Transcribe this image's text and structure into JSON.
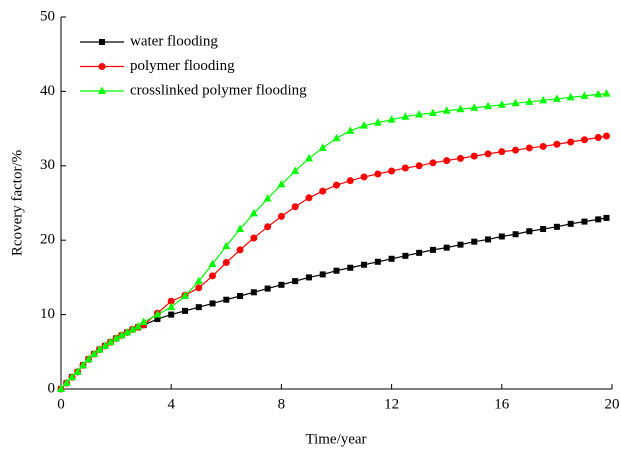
{
  "chart_data": {
    "type": "line",
    "xlabel": "Time/year",
    "ylabel": "Rcovery factor/%",
    "x": [
      0,
      0.2,
      0.4,
      0.6,
      0.8,
      1,
      1.2,
      1.4,
      1.6,
      1.8,
      2,
      2.2,
      2.4,
      2.6,
      2.8,
      3,
      3.5,
      4,
      4.5,
      5,
      5.5,
      6,
      6.5,
      7,
      7.5,
      8,
      8.5,
      9,
      9.5,
      10,
      10.5,
      11,
      11.5,
      12,
      12.5,
      13,
      13.5,
      14,
      14.5,
      15,
      15.5,
      16,
      16.5,
      17,
      17.5,
      18,
      18.5,
      19,
      19.5,
      19.8
    ],
    "series": [
      {
        "name": "water flooding",
        "color": "#000000",
        "marker": "square",
        "values": [
          0,
          0.8,
          1.6,
          2.3,
          3.2,
          4.0,
          4.7,
          5.3,
          5.8,
          6.3,
          6.8,
          7.2,
          7.6,
          8.0,
          8.3,
          8.6,
          9.4,
          10.0,
          10.5,
          11.0,
          11.5,
          12.0,
          12.5,
          13.0,
          13.5,
          14.0,
          14.5,
          15.0,
          15.4,
          15.9,
          16.3,
          16.7,
          17.1,
          17.5,
          17.9,
          18.3,
          18.7,
          19.0,
          19.4,
          19.8,
          20.1,
          20.5,
          20.8,
          21.2,
          21.5,
          21.8,
          22.2,
          22.5,
          22.8,
          23.0
        ]
      },
      {
        "name": "polymer flooding",
        "color": "#ff0000",
        "marker": "circle",
        "values": [
          0,
          0.8,
          1.6,
          2.3,
          3.2,
          4.0,
          4.7,
          5.3,
          5.8,
          6.3,
          6.8,
          7.2,
          7.6,
          8.0,
          8.3,
          8.6,
          10.2,
          11.8,
          12.6,
          13.6,
          15.2,
          17.0,
          18.7,
          20.3,
          21.8,
          23.2,
          24.5,
          25.7,
          26.6,
          27.4,
          28.0,
          28.5,
          28.9,
          29.3,
          29.7,
          30.0,
          30.4,
          30.7,
          31.0,
          31.3,
          31.6,
          31.9,
          32.1,
          32.4,
          32.6,
          32.9,
          33.2,
          33.5,
          33.8,
          34.0
        ]
      },
      {
        "name": "crosslinked polymer flooding",
        "color": "#00ff00",
        "marker": "triangle",
        "values": [
          0,
          0.8,
          1.6,
          2.3,
          3.2,
          4.0,
          4.7,
          5.3,
          5.8,
          6.3,
          6.8,
          7.2,
          7.6,
          8.0,
          8.4,
          9.0,
          10.0,
          11.0,
          12.5,
          14.5,
          16.8,
          19.2,
          21.5,
          23.6,
          25.6,
          27.5,
          29.3,
          31.0,
          32.4,
          33.7,
          34.7,
          35.4,
          35.8,
          36.2,
          36.6,
          36.9,
          37.1,
          37.4,
          37.6,
          37.8,
          38.0,
          38.2,
          38.4,
          38.6,
          38.8,
          39.0,
          39.2,
          39.4,
          39.6,
          39.7
        ]
      }
    ],
    "xlim": [
      0,
      20
    ],
    "xticks": [
      0,
      4,
      8,
      12,
      16,
      20
    ],
    "ylim": [
      0,
      50
    ],
    "yticks": [
      0,
      10,
      20,
      30,
      40,
      50
    ],
    "grid": false,
    "legend": "upper left"
  }
}
